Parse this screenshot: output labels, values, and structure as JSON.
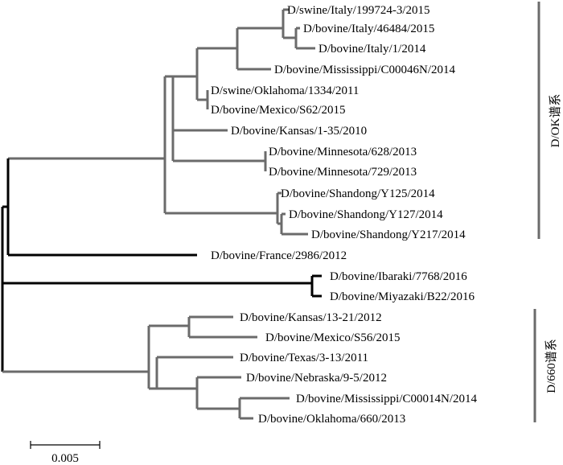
{
  "leaves": [
    "D/swine/Italy/199724-3/2015",
    "D/bovine/Italy/46484/2015",
    "D/bovine/Italy/1/2014",
    "D/bovine/Mississippi/C00046N/2014",
    "D/swine/Oklahoma/1334/2011",
    "D/bovine/Mexico/S62/2015",
    "D/bovine/Kansas/1-35/2010",
    "D/bovine/Minnesota/628/2013",
    "D/bovine/Minnesota/729/2013",
    "D/bovine/Shandong/Y125/2014",
    "D/bovine/Shandong/Y127/2014",
    "D/bovine/Shandong/Y217/2014",
    "D/bovine/France/2986/2012",
    "D/bovine/Ibaraki/7768/2016",
    "D/bovine/Miyazaki/B22/2016",
    "D/bovine/Kansas/13-21/2012",
    "D/bovine/Mexico/S56/2015",
    "D/bovine/Texas/3-13/2011",
    "D/bovine/Nebraska/9-5/2012",
    "D/bovine/Mississippi/C00014N/2014",
    "D/bovine/Oklahoma/660/2013"
  ],
  "clades": [
    {
      "label": "D/OK谱系"
    },
    {
      "label": "D/660谱系"
    }
  ],
  "scale_bar": {
    "label": "0.005"
  }
}
